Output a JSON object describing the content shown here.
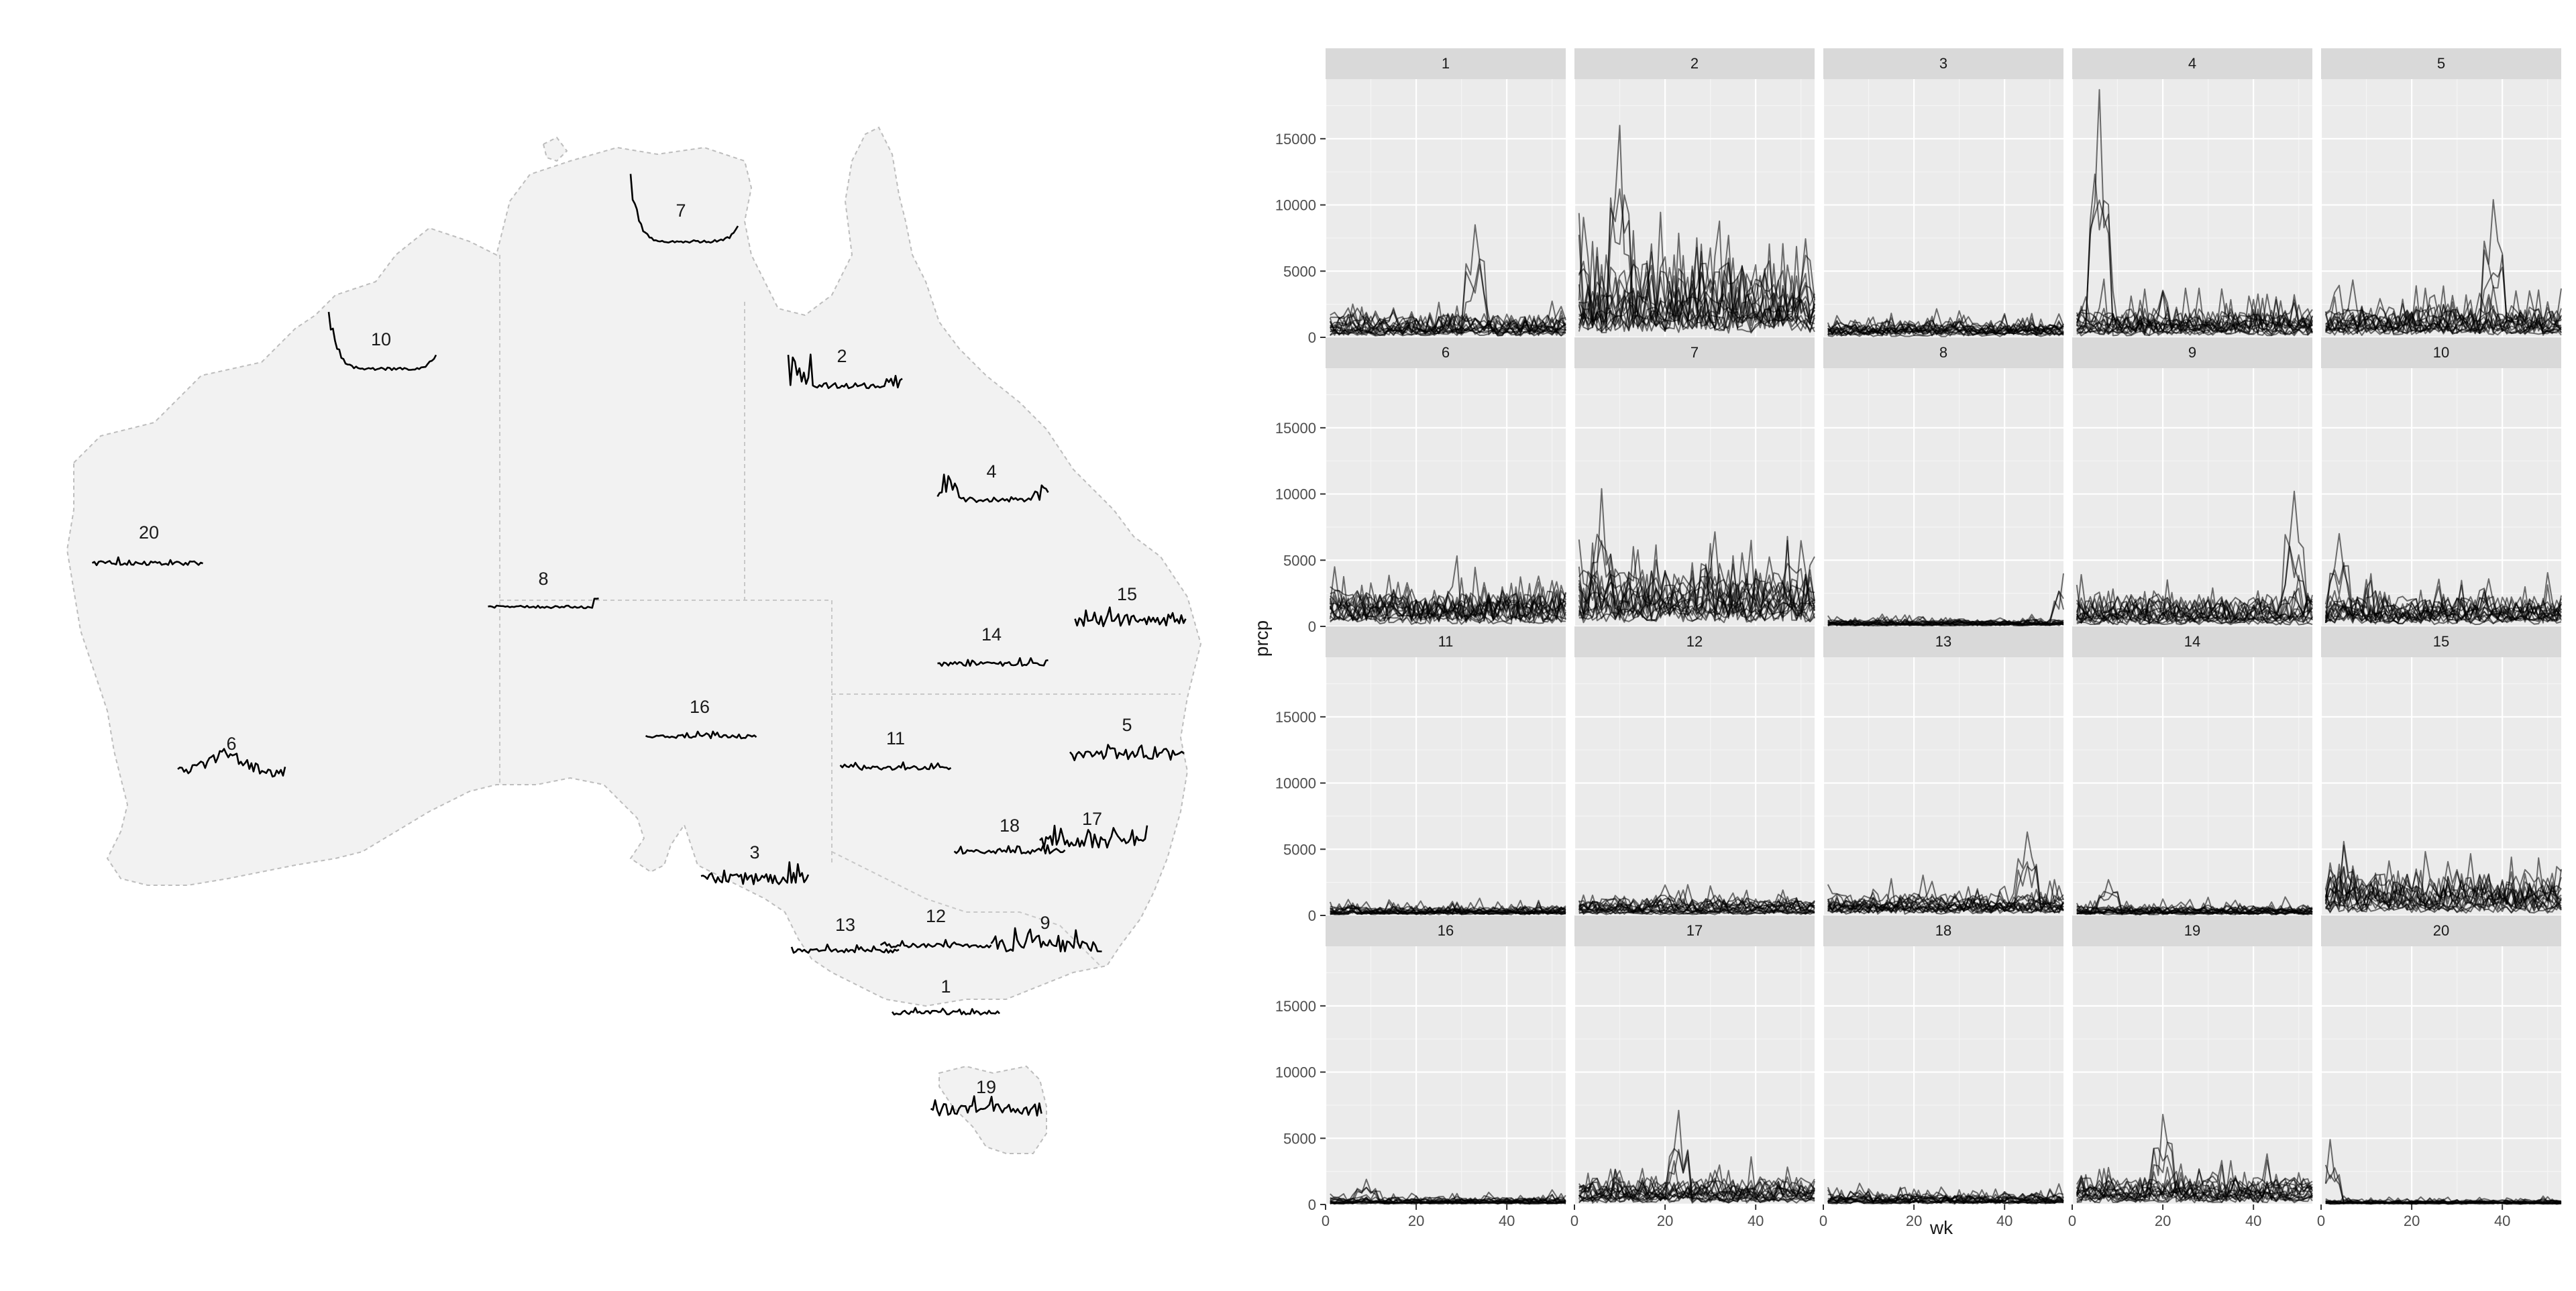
{
  "chart_data": [
    {
      "type": "map",
      "description_note": "",
      "regions": [
        "western-australia",
        "northern-territory",
        "queensland",
        "south-australia",
        "new-south-wales",
        "victoria",
        "tasmania"
      ],
      "station_labels": [
        "1",
        "2",
        "3",
        "4",
        "5",
        "6",
        "7",
        "8",
        "9",
        "10",
        "11",
        "12",
        "13",
        "14",
        "15",
        "16",
        "17",
        "18",
        "19",
        "20"
      ],
      "glyph_series_note": ""
    },
    {
      "type": "line",
      "facet": "small-multiples",
      "xlabel": "wk",
      "ylabel": "prcp",
      "xlim": [
        0,
        53
      ],
      "ylim": [
        0,
        19500
      ],
      "x_ticks": [
        0,
        20,
        40
      ],
      "y_ticks": [
        0,
        5000,
        10000,
        15000
      ],
      "grid": true,
      "line_color": "#000000",
      "panel_background": "#ebebeb",
      "strip_background": "#d9d9d9",
      "facets": [
        {
          "label": "1",
          "typical": 700,
          "peak": 8500,
          "peak_wk": 33
        },
        {
          "label": "2",
          "typical": 2500,
          "peak": 16000,
          "peak_wk": 10
        },
        {
          "label": "3",
          "typical": 500,
          "peak": 2000,
          "peak_wk": 30
        },
        {
          "label": "4",
          "typical": 900,
          "peak": 18700,
          "peak_wk": 6
        },
        {
          "label": "5",
          "typical": 1000,
          "peak": 10400,
          "peak_wk": 38
        },
        {
          "label": "6",
          "typical": 1100,
          "peak": 4500,
          "peak_wk": 2
        },
        {
          "label": "7",
          "typical": 2000,
          "peak": 10400,
          "peak_wk": 6
        },
        {
          "label": "8",
          "typical": 200,
          "peak": 4000,
          "peak_wk": 53
        },
        {
          "label": "9",
          "typical": 900,
          "peak": 10200,
          "peak_wk": 49
        },
        {
          "label": "10",
          "typical": 900,
          "peak": 7000,
          "peak_wk": 4
        },
        {
          "label": "11",
          "typical": 300,
          "peak": 1200,
          "peak_wk": 5
        },
        {
          "label": "12",
          "typical": 500,
          "peak": 2300,
          "peak_wk": 20
        },
        {
          "label": "13",
          "typical": 700,
          "peak": 6300,
          "peak_wk": 45
        },
        {
          "label": "14",
          "typical": 300,
          "peak": 2700,
          "peak_wk": 8
        },
        {
          "label": "15",
          "typical": 1300,
          "peak": 5300,
          "peak_wk": 5
        },
        {
          "label": "16",
          "typical": 300,
          "peak": 1900,
          "peak_wk": 9
        },
        {
          "label": "17",
          "typical": 800,
          "peak": 7100,
          "peak_wk": 23
        },
        {
          "label": "18",
          "typical": 400,
          "peak": 1600,
          "peak_wk": 8
        },
        {
          "label": "19",
          "typical": 900,
          "peak": 6800,
          "peak_wk": 20
        },
        {
          "label": "20",
          "typical": 150,
          "peak": 4900,
          "peak_wk": 2
        }
      ]
    }
  ]
}
